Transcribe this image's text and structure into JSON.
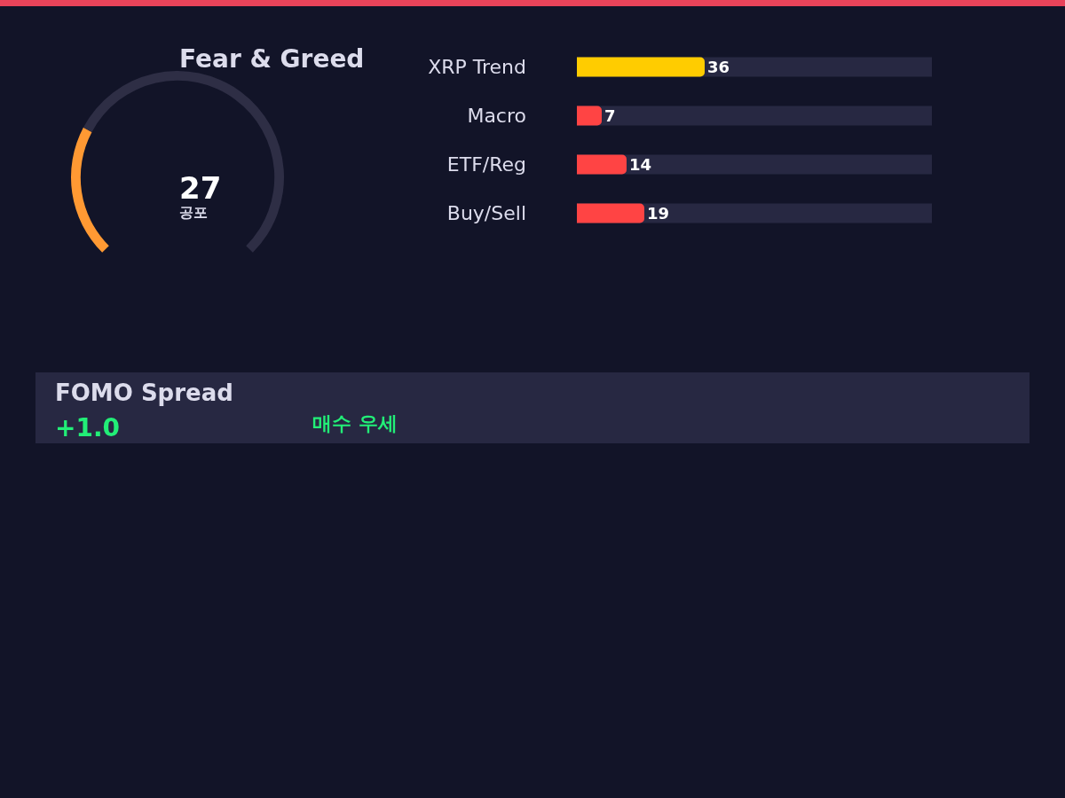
{
  "chart_data": [
    {
      "type": "donut",
      "title": "Fear & Greed",
      "categories": [
        null,
        null
      ],
      "values": [
        27,
        73
      ],
      "colors": [
        "#ff9933",
        "#2e2e45"
      ],
      "annotations": [
        "27",
        "공포"
      ]
    },
    {
      "type": "bar",
      "orientation": "horizontal",
      "categories": [
        "XRP Trend",
        "Macro",
        "ETF/Reg",
        "Buy/Sell"
      ],
      "values": [
        36,
        7,
        14,
        19
      ],
      "colors": [
        "#ffcc00",
        "#ff4444",
        "#ff4444",
        "#ff4444"
      ],
      "xlim": [
        0,
        100
      ],
      "data_labels": true,
      "tick_labels": "y"
    },
    {
      "type": "other",
      "title": "FOMO Spread",
      "annotations": [
        "+1.0",
        "매수 우세"
      ]
    }
  ]
}
